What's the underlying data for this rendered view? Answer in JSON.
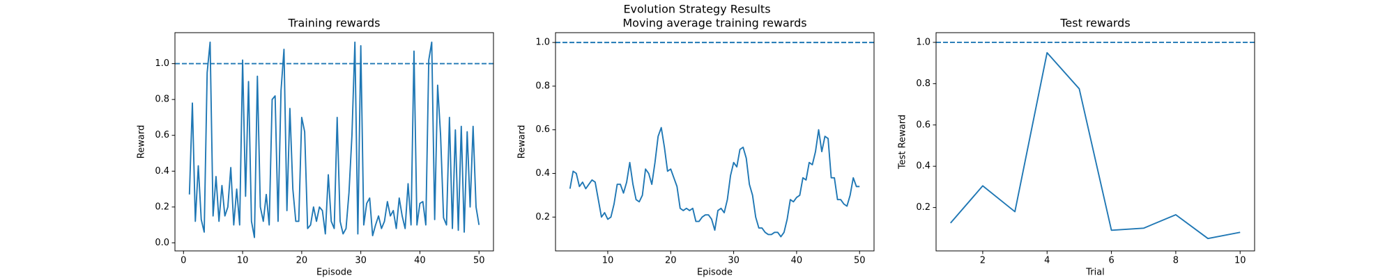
{
  "title": "Evolution Strategy Results",
  "chart_data": [
    {
      "type": "line",
      "title": "Training rewards",
      "x_label": "Episode",
      "y_label": "Reward",
      "x": [
        1,
        1.5,
        2,
        2.5,
        3,
        3.5,
        4,
        4.5,
        5,
        5.5,
        6,
        6.5,
        7,
        7.5,
        8,
        8.5,
        9,
        9.5,
        10,
        10.5,
        11,
        11.5,
        12,
        12.5,
        13,
        13.5,
        14,
        14.5,
        15,
        15.5,
        16,
        16.5,
        17,
        17.5,
        18,
        18.5,
        19,
        19.5,
        20,
        20.5,
        21,
        21.5,
        22,
        22.5,
        23,
        23.5,
        24,
        24.5,
        25,
        25.5,
        26,
        26.5,
        27,
        27.5,
        28,
        28.5,
        29,
        29.5,
        30,
        30.5,
        31,
        31.5,
        32,
        32.5,
        33,
        33.5,
        34,
        34.5,
        35,
        35.5,
        36,
        36.5,
        37,
        37.5,
        38,
        38.5,
        39,
        39.5,
        40,
        40.5,
        41,
        41.5,
        42,
        42.5,
        43,
        43.5,
        44,
        44.5,
        45,
        45.5,
        46,
        46.5,
        47,
        47.5,
        48,
        48.5,
        49,
        49.5,
        50
      ],
      "series": [
        {
          "color": "#1f77b4",
          "values": [
            0.27,
            0.78,
            0.12,
            0.43,
            0.13,
            0.06,
            0.95,
            1.12,
            0.15,
            0.37,
            0.12,
            0.32,
            0.15,
            0.2,
            0.42,
            0.1,
            0.3,
            0.1,
            1.02,
            0.26,
            0.9,
            0.12,
            0.03,
            0.93,
            0.2,
            0.12,
            0.27,
            0.1,
            0.8,
            0.82,
            0.12,
            0.85,
            1.08,
            0.18,
            0.75,
            0.3,
            0.12,
            0.12,
            0.7,
            0.62,
            0.08,
            0.1,
            0.2,
            0.12,
            0.2,
            0.18,
            0.05,
            0.38,
            0.12,
            0.08,
            0.7,
            0.12,
            0.05,
            0.08,
            0.28,
            0.6,
            1.12,
            0.05,
            1.1,
            0.1,
            0.22,
            0.25,
            0.04,
            0.1,
            0.15,
            0.08,
            0.12,
            0.23,
            0.15,
            0.18,
            0.08,
            0.25,
            0.15,
            0.08,
            0.33,
            0.1,
            1.07,
            0.1,
            0.22,
            0.23,
            0.1,
            1.02,
            1.12,
            0.13,
            0.88,
            0.6,
            0.14,
            0.1,
            0.7,
            0.08,
            0.63,
            0.07,
            0.65,
            0.06,
            0.62,
            0.2,
            0.65,
            0.2,
            0.1
          ]
        }
      ],
      "hline": 1.0,
      "hline_style": "dashed",
      "xlim": [
        -1.45,
        52.45
      ],
      "xticks": [
        0,
        10,
        20,
        30,
        40,
        50
      ],
      "ylim": [
        -0.045,
        1.173
      ],
      "yticks": [
        {
          "value": 0,
          "label": "0.0"
        },
        0.2,
        0.4,
        0.6,
        0.8,
        {
          "value": 1,
          "label": "1.0"
        }
      ]
    },
    {
      "type": "line",
      "title": "Moving average training rewards",
      "x_label": "Episode",
      "y_label": "Reward",
      "x": [
        4,
        4.5,
        5,
        5.5,
        6,
        6.5,
        7,
        7.5,
        8,
        8.5,
        9,
        9.5,
        10,
        10.5,
        11,
        11.5,
        12,
        12.5,
        13,
        13.5,
        14,
        14.5,
        15,
        15.5,
        16,
        16.5,
        17,
        17.5,
        18,
        18.5,
        19,
        19.5,
        20,
        20.5,
        21,
        21.5,
        22,
        22.5,
        23,
        23.5,
        24,
        24.5,
        25,
        25.5,
        26,
        26.5,
        27,
        27.5,
        28,
        28.5,
        29,
        29.5,
        30,
        30.5,
        31,
        31.5,
        32,
        32.5,
        33,
        33.5,
        34,
        34.5,
        35,
        35.5,
        36,
        36.5,
        37,
        37.5,
        38,
        38.5,
        39,
        39.5,
        40,
        40.5,
        41,
        41.5,
        42,
        42.5,
        43,
        43.5,
        44,
        44.5,
        45,
        45.5,
        46,
        46.5,
        47,
        47.5,
        48,
        48.5,
        49,
        49.5,
        50
      ],
      "series": [
        {
          "color": "#1f77b4",
          "values": [
            0.33,
            0.41,
            0.4,
            0.34,
            0.36,
            0.33,
            0.35,
            0.37,
            0.36,
            0.28,
            0.2,
            0.22,
            0.19,
            0.2,
            0.26,
            0.35,
            0.35,
            0.31,
            0.36,
            0.45,
            0.35,
            0.28,
            0.27,
            0.3,
            0.42,
            0.4,
            0.35,
            0.45,
            0.57,
            0.61,
            0.52,
            0.41,
            0.42,
            0.38,
            0.34,
            0.24,
            0.23,
            0.24,
            0.23,
            0.24,
            0.18,
            0.18,
            0.2,
            0.21,
            0.21,
            0.19,
            0.14,
            0.23,
            0.24,
            0.22,
            0.28,
            0.39,
            0.45,
            0.43,
            0.51,
            0.52,
            0.47,
            0.35,
            0.3,
            0.2,
            0.15,
            0.15,
            0.13,
            0.12,
            0.12,
            0.13,
            0.13,
            0.11,
            0.13,
            0.19,
            0.28,
            0.27,
            0.29,
            0.3,
            0.38,
            0.37,
            0.45,
            0.44,
            0.5,
            0.6,
            0.5,
            0.57,
            0.56,
            0.38,
            0.38,
            0.28,
            0.28,
            0.26,
            0.25,
            0.3,
            0.38,
            0.34,
            0.34
          ]
        }
      ],
      "hline": 1.0,
      "hline_style": "dashed",
      "xlim": [
        1.7,
        52.3
      ],
      "xticks": [
        10,
        20,
        30,
        40,
        50
      ],
      "ylim": [
        0.045,
        1.045
      ],
      "yticks": [
        0.2,
        0.4,
        0.6,
        0.8,
        {
          "value": 1,
          "label": "1.0"
        }
      ]
    },
    {
      "type": "line",
      "title": "Test rewards",
      "x_label": "Trial",
      "y_label": "Test Reward",
      "x": [
        1,
        2,
        3,
        4,
        5,
        6,
        7,
        8,
        9,
        10
      ],
      "series": [
        {
          "color": "#1f77b4",
          "values": [
            0.125,
            0.305,
            0.18,
            0.95,
            0.775,
            0.09,
            0.1,
            0.165,
            0.05,
            0.08
          ]
        }
      ],
      "hline": 1.0,
      "hline_style": "dashed",
      "xlim": [
        0.55,
        10.45
      ],
      "xticks": [
        2,
        4,
        6,
        8,
        10
      ],
      "ylim": [
        -0.01,
        1.047
      ],
      "yticks": [
        0.2,
        0.4,
        0.6,
        0.8,
        {
          "value": 1,
          "label": "1.0"
        }
      ]
    }
  ]
}
